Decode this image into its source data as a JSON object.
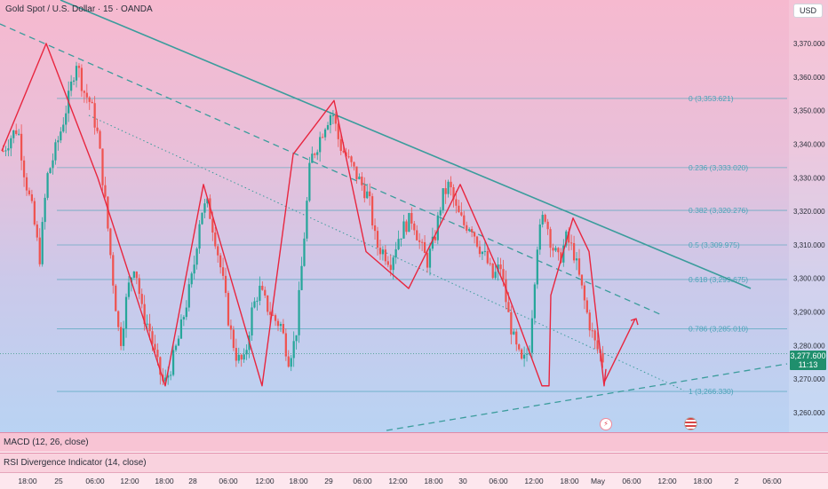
{
  "header": {
    "title": "Gold Spot / U.S. Dollar · 15 · OANDA",
    "currency": "USD"
  },
  "price_badge": {
    "price": "3,277.600",
    "countdown": "11:13"
  },
  "indicators": {
    "macd": "MACD (12, 26, close)",
    "rsi": "RSI Divergence Indicator (14, close)"
  },
  "colors": {
    "up": "#26a69a",
    "down": "#ef5350",
    "zigzag": "#e8263f",
    "trendline": "#3b9c9c",
    "fib": "#4aa3b8"
  },
  "chart_data": {
    "type": "candlestick",
    "y_ticks": [
      3260,
      3270,
      3280,
      3290,
      3300,
      3310,
      3320,
      3330,
      3340,
      3350,
      3360,
      3370
    ],
    "y_tick_labels": [
      "3,260.000",
      "3,270.000",
      "3,280.000",
      "3,290.000",
      "3,300.000",
      "3,310.000",
      "3,320.000",
      "3,330.000",
      "3,340.000",
      "3,350.000",
      "3,360.000",
      "3,370.000"
    ],
    "x_labels": [
      "18:00",
      "25",
      "06:00",
      "12:00",
      "18:00",
      "28",
      "06:00",
      "12:00",
      "18:00",
      "29",
      "06:00",
      "12:00",
      "18:00",
      "30",
      "06:00",
      "12:00",
      "18:00",
      "May",
      "06:00",
      "12:00",
      "18:00",
      "2",
      "06:00"
    ],
    "fib_levels": [
      {
        "ratio": "0",
        "label": "0 (3,353.621)",
        "value": 3353.621
      },
      {
        "ratio": "0.236",
        "label": "0.236 (3,333.020)",
        "value": 3333.02
      },
      {
        "ratio": "0.382",
        "label": "0.382 (3,320.276)",
        "value": 3320.276
      },
      {
        "ratio": "0.5",
        "label": "0.5 (3,309.975)",
        "value": 3309.975
      },
      {
        "ratio": "0.618",
        "label": "0.618 (3,299.675)",
        "value": 3299.675
      },
      {
        "ratio": "0.786",
        "label": "0.786 (3,285.010)",
        "value": 3285.01
      },
      {
        "ratio": "1",
        "label": "1 (3,266.330)",
        "value": 3266.33
      }
    ],
    "current_price": 3277.6,
    "price_path": [
      3338,
      3342,
      3345,
      3330,
      3320,
      3306,
      3330,
      3337,
      3345,
      3354,
      3365,
      3356,
      3352,
      3342,
      3322,
      3300,
      3280,
      3296,
      3305,
      3290,
      3285,
      3275,
      3268,
      3274,
      3282,
      3292,
      3302,
      3320,
      3322,
      3312,
      3300,
      3285,
      3276,
      3275,
      3290,
      3297,
      3292,
      3288,
      3286,
      3276,
      3282,
      3308,
      3335,
      3340,
      3346,
      3350,
      3340,
      3336,
      3332,
      3328,
      3324,
      3310,
      3308,
      3305,
      3312,
      3316,
      3318,
      3310,
      3305,
      3312,
      3324,
      3328,
      3320,
      3316,
      3316,
      3310,
      3306,
      3300,
      3304,
      3290,
      3280,
      3274,
      3280,
      3310,
      3320,
      3310,
      3305,
      3312,
      3308,
      3298,
      3288,
      3280,
      3276
    ],
    "zigzag": [
      [
        3338
      ],
      [
        3370
      ],
      [
        3330
      ],
      [
        3268
      ],
      [
        3328
      ],
      [
        3268
      ],
      [
        3337
      ],
      [
        3353
      ],
      [
        3308
      ],
      [
        3297
      ],
      [
        3328
      ],
      [
        3298
      ],
      [
        3268
      ],
      [
        3318
      ],
      [
        3308
      ],
      [
        3268
      ],
      [
        3273
      ],
      [
        3288
      ]
    ],
    "annotations": [
      "fib retracement",
      "descending trendline",
      "dashed channel line",
      "dotted support line",
      "projected path"
    ]
  }
}
